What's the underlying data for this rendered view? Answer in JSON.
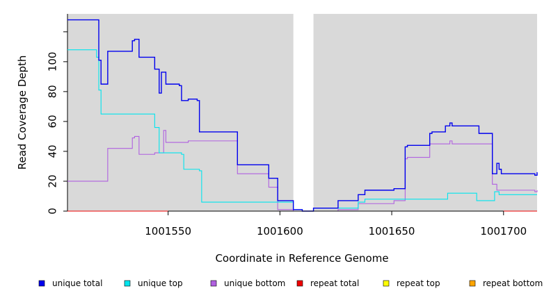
{
  "chart_data": {
    "type": "line",
    "title": "",
    "xlabel": "Coordinate in Reference Genome",
    "ylabel": "Read Coverage Depth",
    "xlim": [
      1001505,
      1001715
    ],
    "ylim": [
      0,
      132
    ],
    "xticks": [
      1001550,
      1001600,
      1001650,
      1001700
    ],
    "yticks": [
      0,
      20,
      40,
      60,
      80,
      100
    ],
    "ytick_labels": [
      "0",
      "20",
      "40",
      "60",
      "80",
      "100"
    ],
    "xtick_labels": [
      "1001550",
      "1001600",
      "1001650",
      "1001700"
    ],
    "gap": [
      1001606,
      1001615
    ],
    "background": "#d9d9d9",
    "grid": false,
    "legend_position": "bottom",
    "series": [
      {
        "name": "unique total",
        "color": "#0000ee",
        "points": [
          [
            1001505,
            128
          ],
          [
            1001519,
            128
          ],
          [
            1001519,
            101
          ],
          [
            1001520,
            101
          ],
          [
            1001520,
            85
          ],
          [
            1001523,
            85
          ],
          [
            1001523,
            107
          ],
          [
            1001534,
            107
          ],
          [
            1001534,
            114
          ],
          [
            1001535,
            114
          ],
          [
            1001535,
            115
          ],
          [
            1001537,
            115
          ],
          [
            1001537,
            103
          ],
          [
            1001544,
            103
          ],
          [
            1001544,
            95
          ],
          [
            1001546,
            95
          ],
          [
            1001546,
            79
          ],
          [
            1001547,
            79
          ],
          [
            1001547,
            93
          ],
          [
            1001549,
            93
          ],
          [
            1001549,
            85
          ],
          [
            1001555,
            85
          ],
          [
            1001555,
            84
          ],
          [
            1001556,
            84
          ],
          [
            1001556,
            74
          ],
          [
            1001559,
            74
          ],
          [
            1001559,
            75
          ],
          [
            1001563,
            75
          ],
          [
            1001563,
            74
          ],
          [
            1001564,
            74
          ],
          [
            1001564,
            53
          ],
          [
            1001581,
            53
          ],
          [
            1001581,
            31
          ],
          [
            1001595,
            31
          ],
          [
            1001595,
            22
          ],
          [
            1001599,
            22
          ],
          [
            1001599,
            7
          ],
          [
            1001606,
            7
          ],
          [
            1001606,
            1
          ],
          [
            1001610,
            1
          ],
          [
            1001610,
            0
          ],
          [
            1001615,
            0
          ],
          [
            1001615,
            2
          ],
          [
            1001626,
            2
          ],
          [
            1001626,
            7
          ],
          [
            1001635,
            7
          ],
          [
            1001635,
            11
          ],
          [
            1001638,
            11
          ],
          [
            1001638,
            14
          ],
          [
            1001651,
            14
          ],
          [
            1001651,
            15
          ],
          [
            1001656,
            15
          ],
          [
            1001656,
            43
          ],
          [
            1001657,
            43
          ],
          [
            1001657,
            44
          ],
          [
            1001667,
            44
          ],
          [
            1001667,
            52
          ],
          [
            1001668,
            52
          ],
          [
            1001668,
            53
          ],
          [
            1001674,
            53
          ],
          [
            1001674,
            57
          ],
          [
            1001676,
            57
          ],
          [
            1001676,
            59
          ],
          [
            1001677,
            59
          ],
          [
            1001677,
            57
          ],
          [
            1001689,
            57
          ],
          [
            1001689,
            52
          ],
          [
            1001695,
            52
          ],
          [
            1001695,
            25
          ],
          [
            1001697,
            25
          ],
          [
            1001697,
            32
          ],
          [
            1001698,
            32
          ],
          [
            1001698,
            28
          ],
          [
            1001699,
            28
          ],
          [
            1001699,
            25
          ],
          [
            1001714,
            25
          ],
          [
            1001714,
            24
          ],
          [
            1001715,
            24
          ],
          [
            1001715,
            26
          ]
        ]
      },
      {
        "name": "unique top",
        "color": "#00e5ee",
        "points": [
          [
            1001505,
            108
          ],
          [
            1001518,
            108
          ],
          [
            1001518,
            103
          ],
          [
            1001519,
            103
          ],
          [
            1001519,
            81
          ],
          [
            1001520,
            81
          ],
          [
            1001520,
            65
          ],
          [
            1001544,
            65
          ],
          [
            1001544,
            56
          ],
          [
            1001546,
            56
          ],
          [
            1001546,
            39
          ],
          [
            1001556,
            39
          ],
          [
            1001556,
            38
          ],
          [
            1001557,
            38
          ],
          [
            1001557,
            28
          ],
          [
            1001564,
            28
          ],
          [
            1001564,
            27
          ],
          [
            1001565,
            27
          ],
          [
            1001565,
            6
          ],
          [
            1001606,
            6
          ],
          [
            1001606,
            1
          ],
          [
            1001610,
            1
          ],
          [
            1001610,
            0
          ],
          [
            1001615,
            0
          ],
          [
            1001615,
            2
          ],
          [
            1001635,
            2
          ],
          [
            1001635,
            6
          ],
          [
            1001638,
            6
          ],
          [
            1001638,
            8
          ],
          [
            1001675,
            8
          ],
          [
            1001675,
            12
          ],
          [
            1001688,
            12
          ],
          [
            1001688,
            7
          ],
          [
            1001696,
            7
          ],
          [
            1001696,
            13
          ],
          [
            1001698,
            13
          ],
          [
            1001698,
            11
          ],
          [
            1001715,
            11
          ]
        ]
      },
      {
        "name": "unique bottom",
        "color": "#b060e0",
        "points": [
          [
            1001505,
            20
          ],
          [
            1001523,
            20
          ],
          [
            1001523,
            42
          ],
          [
            1001534,
            42
          ],
          [
            1001534,
            49
          ],
          [
            1001535,
            49
          ],
          [
            1001535,
            50
          ],
          [
            1001537,
            50
          ],
          [
            1001537,
            38
          ],
          [
            1001544,
            38
          ],
          [
            1001544,
            39
          ],
          [
            1001548,
            39
          ],
          [
            1001548,
            54
          ],
          [
            1001549,
            54
          ],
          [
            1001549,
            46
          ],
          [
            1001559,
            46
          ],
          [
            1001559,
            47
          ],
          [
            1001581,
            47
          ],
          [
            1001581,
            25
          ],
          [
            1001595,
            25
          ],
          [
            1001595,
            16
          ],
          [
            1001599,
            16
          ],
          [
            1001599,
            1
          ],
          [
            1001606,
            1
          ],
          [
            1001606,
            0
          ],
          [
            1001626,
            0
          ],
          [
            1001626,
            1
          ],
          [
            1001635,
            1
          ],
          [
            1001635,
            5
          ],
          [
            1001651,
            5
          ],
          [
            1001651,
            7
          ],
          [
            1001656,
            7
          ],
          [
            1001656,
            35
          ],
          [
            1001657,
            35
          ],
          [
            1001657,
            36
          ],
          [
            1001667,
            36
          ],
          [
            1001667,
            45
          ],
          [
            1001676,
            45
          ],
          [
            1001676,
            47
          ],
          [
            1001677,
            47
          ],
          [
            1001677,
            45
          ],
          [
            1001695,
            45
          ],
          [
            1001695,
            18
          ],
          [
            1001697,
            18
          ],
          [
            1001697,
            14
          ],
          [
            1001714,
            14
          ],
          [
            1001714,
            13
          ],
          [
            1001715,
            13
          ],
          [
            1001715,
            14
          ]
        ]
      },
      {
        "name": "repeat total",
        "color": "#ee0000",
        "points": [
          [
            1001505,
            0
          ],
          [
            1001715,
            0
          ]
        ]
      },
      {
        "name": "repeat top",
        "color": "#ffff00",
        "points": [
          [
            1001505,
            0
          ],
          [
            1001715,
            0
          ]
        ]
      },
      {
        "name": "repeat bottom",
        "color": "#ffa500",
        "points": [
          [
            1001505,
            0
          ],
          [
            1001715,
            0
          ]
        ]
      }
    ]
  }
}
